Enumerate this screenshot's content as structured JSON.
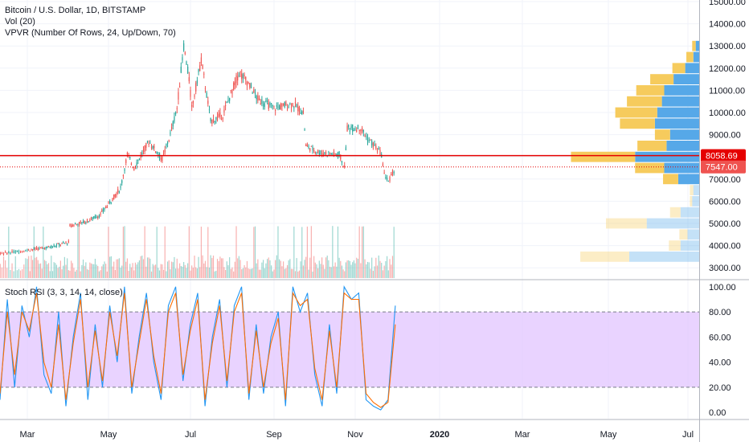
{
  "legend": {
    "symbol": "Bitcoin / U.S. Dollar, 1D, BITSTAMP",
    "volume": "Vol (20)",
    "vpvr": "VPVR (Number Of Rows, 24, Up/Down, 70)",
    "rsi": "Stoch RSI (3, 3, 14, 14, close)"
  },
  "colors": {
    "up": "#26a69a",
    "down": "#ef5350",
    "rsi_k": "#2196f3",
    "rsi_d": "#ff6d00",
    "rsi_band": "#e1c4ff",
    "level_line": "#e50000",
    "vpvr_up": "#56a8e8",
    "vpvr_down": "#f6cb5d"
  },
  "chart_data": [
    {
      "type": "candlestick",
      "price_axis": {
        "ticks": [
          "3000.00",
          "4000.00",
          "5000.00",
          "6000.00",
          "7000.00",
          "8000.00",
          "9000.00",
          "10000.00",
          "11000.00",
          "12000.00",
          "13000.00",
          "14000.00",
          "15000.00"
        ],
        "range": [
          2500,
          15000
        ]
      },
      "time_axis": {
        "ticks": [
          "Mar",
          "May",
          "Jul",
          "Sep",
          "Nov",
          "2020",
          "Mar",
          "May",
          "Jul"
        ]
      },
      "price_path": [
        [
          "2019-02-01",
          3500
        ],
        [
          "2019-02-15",
          3650
        ],
        [
          "2019-03-01",
          3800
        ],
        [
          "2019-03-15",
          3900
        ],
        [
          "2019-04-01",
          4150
        ],
        [
          "2019-04-02",
          4900
        ],
        [
          "2019-04-15",
          5100
        ],
        [
          "2019-04-25",
          5400
        ],
        [
          "2019-05-10",
          6600
        ],
        [
          "2019-05-15",
          8100
        ],
        [
          "2019-05-20",
          7500
        ],
        [
          "2019-05-31",
          8700
        ],
        [
          "2019-06-10",
          7900
        ],
        [
          "2019-06-16",
          9000
        ],
        [
          "2019-06-21",
          10200
        ],
        [
          "2019-06-26",
          13000
        ],
        [
          "2019-06-30",
          11500
        ],
        [
          "2019-07-02",
          10200
        ],
        [
          "2019-07-09",
          12400
        ],
        [
          "2019-07-16",
          9600
        ],
        [
          "2019-07-25",
          9900
        ],
        [
          "2019-08-06",
          11800
        ],
        [
          "2019-08-12",
          11400
        ],
        [
          "2019-08-20",
          10600
        ],
        [
          "2019-09-01",
          10200
        ],
        [
          "2019-09-15",
          10400
        ],
        [
          "2019-09-23",
          10000
        ],
        [
          "2019-09-25",
          8500
        ],
        [
          "2019-10-05",
          8200
        ],
        [
          "2019-10-20",
          8100
        ],
        [
          "2019-10-24",
          7500
        ],
        [
          "2019-10-26",
          9300
        ],
        [
          "2019-11-05",
          9300
        ],
        [
          "2019-11-10",
          8800
        ],
        [
          "2019-11-15",
          8500
        ],
        [
          "2019-11-20",
          8100
        ],
        [
          "2019-11-22",
          7200
        ],
        [
          "2019-11-25",
          6900
        ],
        [
          "2019-11-30",
          7500
        ]
      ],
      "levels": [
        {
          "label": "8058.69",
          "value": 8058.69,
          "style": "solid"
        },
        {
          "label": "7547.00",
          "value": 7547.0,
          "style": "dotted"
        }
      ],
      "vpvr": [
        {
          "price": 13000,
          "up": 0.03,
          "down": 0.03
        },
        {
          "price": 12500,
          "up": 0.05,
          "down": 0.06
        },
        {
          "price": 12000,
          "up": 0.12,
          "down": 0.11
        },
        {
          "price": 11500,
          "up": 0.22,
          "down": 0.2
        },
        {
          "price": 11000,
          "up": 0.3,
          "down": 0.24
        },
        {
          "price": 10500,
          "up": 0.32,
          "down": 0.3
        },
        {
          "price": 10000,
          "up": 0.36,
          "down": 0.36
        },
        {
          "price": 9500,
          "up": 0.38,
          "down": 0.3
        },
        {
          "price": 9000,
          "up": 0.25,
          "down": 0.13
        },
        {
          "price": 8500,
          "up": 0.28,
          "down": 0.25
        },
        {
          "price": 8000,
          "up": 0.55,
          "down": 0.55
        },
        {
          "price": 7500,
          "up": 0.3,
          "down": 0.25
        },
        {
          "price": 7000,
          "up": 0.18,
          "down": 0.13
        },
        {
          "price": 6500,
          "up": 0.05,
          "down": 0.03
        },
        {
          "price": 6000,
          "up": 0.06,
          "down": 0.02
        },
        {
          "price": 5500,
          "up": 0.16,
          "down": 0.09
        },
        {
          "price": 5000,
          "up": 0.45,
          "down": 0.35
        },
        {
          "price": 4500,
          "up": 0.1,
          "down": 0.07
        },
        {
          "price": 4000,
          "up": 0.16,
          "down": 0.1
        },
        {
          "price": 3500,
          "up": 0.6,
          "down": 0.42
        }
      ]
    },
    {
      "type": "line",
      "title": "Stoch RSI (3, 3, 14, 14, close)",
      "ylim": [
        -5,
        105
      ],
      "y_ticks": [
        "0.00",
        "20.00",
        "40.00",
        "60.00",
        "80.00",
        "100.00"
      ],
      "band": [
        20,
        80
      ],
      "series": [
        {
          "values_note": "k",
          "values": [
            10,
            90,
            20,
            85,
            60,
            100,
            30,
            15,
            80,
            5,
            60,
            95,
            10,
            70,
            20,
            85,
            40,
            100,
            15,
            60,
            95,
            40,
            10,
            85,
            100,
            25,
            70,
            95,
            5,
            60,
            90,
            20,
            85,
            100,
            10,
            70,
            15,
            60,
            80,
            5,
            100,
            80,
            95,
            30,
            5,
            70,
            15,
            100,
            90,
            95,
            10,
            5,
            2,
            10,
            85
          ]
        },
        {
          "values_note": "d",
          "values": [
            15,
            80,
            30,
            80,
            65,
            95,
            40,
            20,
            70,
            10,
            55,
            90,
            20,
            65,
            25,
            80,
            45,
            95,
            20,
            55,
            90,
            45,
            15,
            80,
            95,
            30,
            65,
            90,
            10,
            55,
            85,
            25,
            80,
            95,
            15,
            65,
            20,
            55,
            75,
            10,
            95,
            85,
            90,
            35,
            10,
            65,
            20,
            95,
            90,
            90,
            15,
            8,
            4,
            8,
            70
          ]
        }
      ]
    }
  ]
}
